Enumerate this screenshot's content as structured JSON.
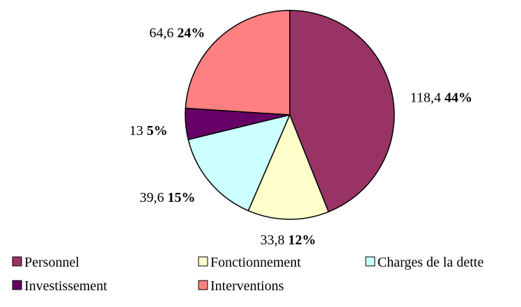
{
  "chart_data": {
    "type": "pie",
    "categories": [
      "Personnel",
      "Fonctionnement",
      "Charges de la dette",
      "Investissement",
      "Interventions"
    ],
    "values": [
      118.4,
      33.8,
      39.6,
      13,
      64.6
    ],
    "value_labels": [
      "118,4",
      "33,8",
      "39,6",
      "13",
      "64,6"
    ],
    "percent_labels": [
      "44%",
      "12%",
      "15%",
      "5%",
      "24%"
    ],
    "colors": [
      "#993366",
      "#ffffcc",
      "#ccffff",
      "#660066",
      "#ff8080"
    ],
    "legend": "bottom"
  }
}
